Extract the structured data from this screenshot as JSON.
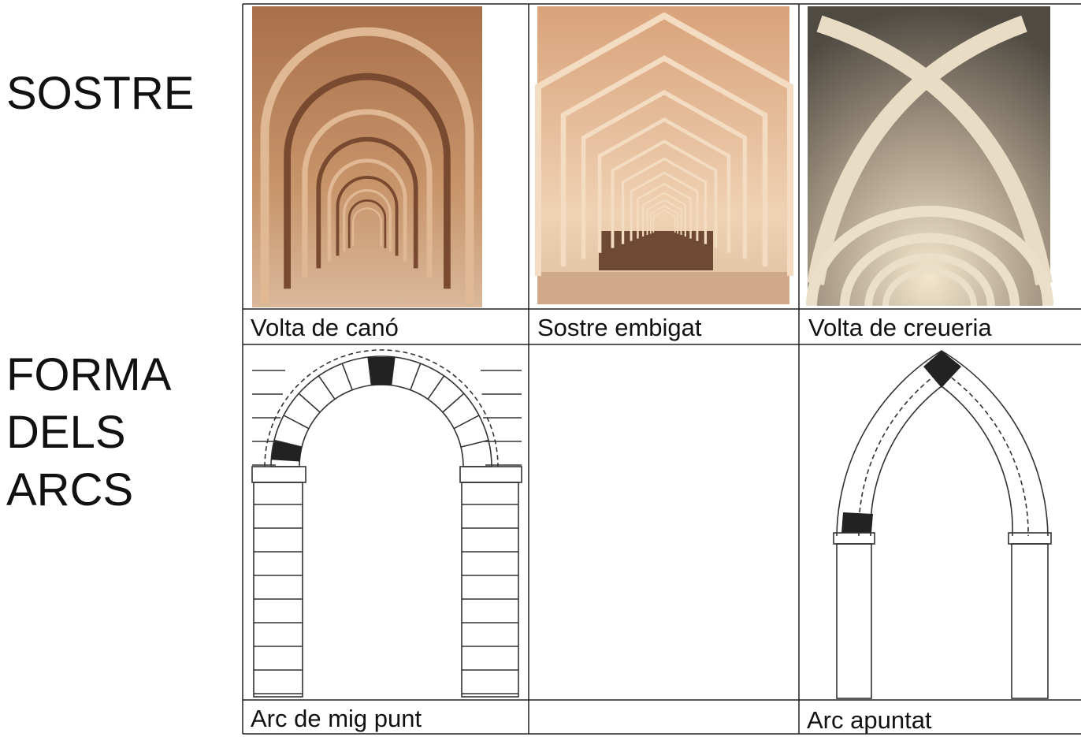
{
  "rows": [
    {
      "label": [
        "SOSTRE"
      ],
      "cells": [
        {
          "caption": "Volta de canó"
        },
        {
          "caption": "Sostre embigat"
        },
        {
          "caption": "Volta de creueria"
        }
      ]
    },
    {
      "label": [
        "FORMA",
        "DELS",
        "ARCS"
      ],
      "cells": [
        {
          "caption": "Arc de mig punt"
        },
        null,
        {
          "caption": "Arc apuntat"
        }
      ]
    }
  ]
}
